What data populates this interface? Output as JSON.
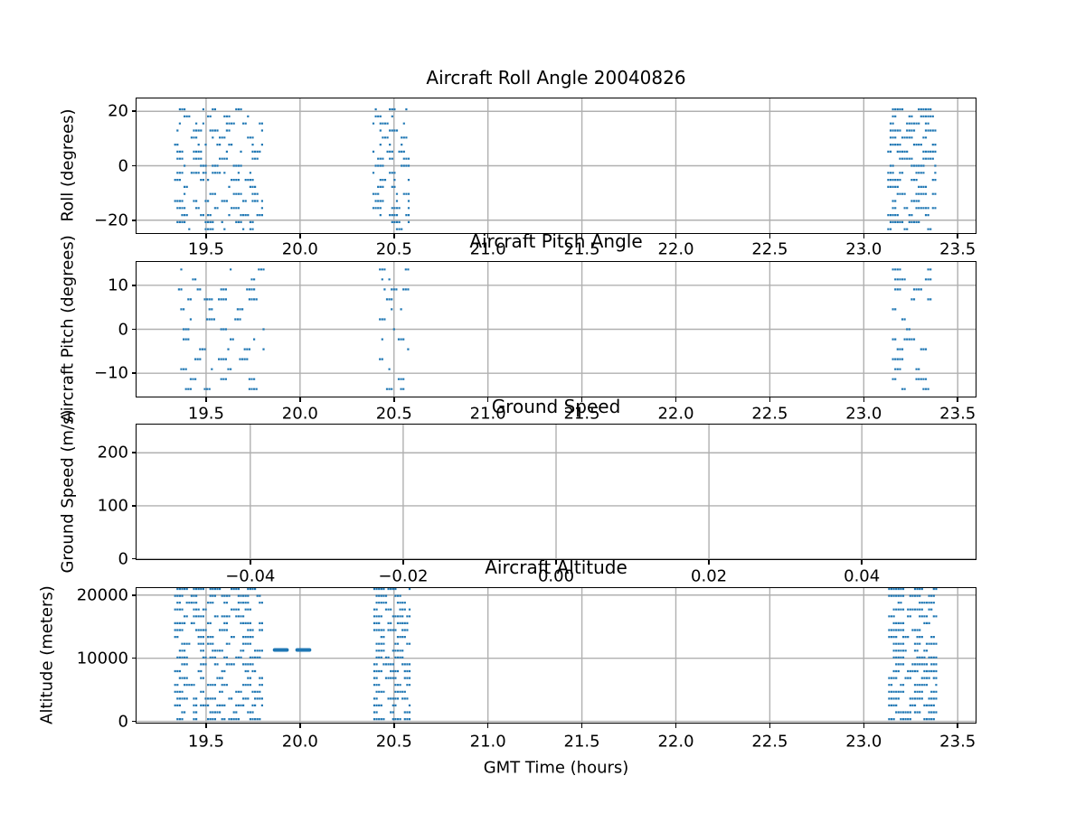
{
  "figure_title": "Aircraft Roll Angle 20040826",
  "colors": {
    "marker": "#1f77b4",
    "grid": "#b0b0b0",
    "spine": "#000000",
    "text": "#000000",
    "background": "#ffffff"
  },
  "chart_data": [
    {
      "id": "roll",
      "type": "scatter",
      "title": "Aircraft Roll Angle 20040826",
      "ylabel": "Roll (degrees)",
      "xlim": [
        19.125,
        23.6
      ],
      "ylim": [
        -25.06,
        25.06
      ],
      "xticks": [
        19.5,
        20.0,
        20.5,
        21.0,
        21.5,
        22.0,
        22.5,
        23.0,
        23.5
      ],
      "xtick_labels": [
        "19.5",
        "20.0",
        "20.5",
        "21.0",
        "21.5",
        "22.0",
        "22.5",
        "23.0",
        "23.5"
      ],
      "yticks": [
        -20,
        0,
        20
      ],
      "ytick_labels": [
        "−20",
        "0",
        "20"
      ],
      "grid": true,
      "marker": "pixel-dot",
      "y_levels": {
        "from": -23.3,
        "to": 23.3,
        "step": 2.59
      },
      "clusters": [
        {
          "x_range": [
            19.33,
            19.805
          ],
          "density": 0.3,
          "run": [
            1,
            4
          ],
          "gap": [
            1,
            6
          ]
        },
        {
          "x_range": [
            20.385,
            20.575
          ],
          "density": 0.32,
          "run": [
            1,
            4
          ],
          "gap": [
            1,
            5
          ]
        },
        {
          "x_range": [
            23.125,
            23.385
          ],
          "density": 0.4,
          "run": [
            2,
            6
          ],
          "gap": [
            1,
            5
          ]
        }
      ]
    },
    {
      "id": "pitch",
      "type": "scatter",
      "title": "Aircraft Pitch Angle",
      "ylabel": "Aircraft Pitch (degrees)",
      "xlim": [
        19.125,
        23.6
      ],
      "ylim": [
        -15.5,
        15.5
      ],
      "xticks": [
        19.5,
        20.0,
        20.5,
        21.0,
        21.5,
        22.0,
        22.5,
        23.0,
        23.5
      ],
      "xtick_labels": [
        "19.5",
        "20.0",
        "20.5",
        "21.0",
        "21.5",
        "22.0",
        "22.5",
        "23.0",
        "23.5"
      ],
      "yticks": [
        -10,
        0,
        10
      ],
      "ytick_labels": [
        "−10",
        "0",
        "10"
      ],
      "grid": true,
      "marker": "pixel-dot",
      "y_levels": {
        "from": -13.6,
        "to": 13.6,
        "step": 2.266
      },
      "clusters": [
        {
          "x_range": [
            19.35,
            19.81
          ],
          "density": 0.15,
          "run": [
            1,
            4
          ],
          "gap": [
            2,
            10
          ]
        },
        {
          "x_range": [
            20.42,
            20.575
          ],
          "density": 0.18,
          "run": [
            1,
            3
          ],
          "gap": [
            2,
            8
          ]
        },
        {
          "x_range": [
            23.15,
            23.36
          ],
          "density": 0.2,
          "run": [
            2,
            5
          ],
          "gap": [
            2,
            8
          ]
        }
      ]
    },
    {
      "id": "ground-speed",
      "type": "scatter",
      "title": "Ground Speed",
      "ylabel": "Ground Speed (m/s)",
      "xlim": [
        -0.055,
        0.055
      ],
      "ylim": [
        -2.5,
        255
      ],
      "xticks": [
        -0.04,
        -0.02,
        0.0,
        0.02,
        0.04
      ],
      "xtick_labels": [
        "−0.04",
        "−0.02",
        "0.00",
        "0.02",
        "0.04"
      ],
      "yticks": [
        0,
        100,
        200
      ],
      "ytick_labels": [
        "0",
        "100",
        "200"
      ],
      "grid": true,
      "marker": "pixel-dot",
      "y_levels": null,
      "clusters": []
    },
    {
      "id": "altitude",
      "type": "scatter",
      "title": "Aircraft Altitude",
      "ylabel": "Altitude (meters)",
      "xlabel": "GMT Time (hours)",
      "xlim": [
        19.125,
        23.6
      ],
      "ylim": [
        -350,
        21250
      ],
      "xticks": [
        19.5,
        20.0,
        20.5,
        21.0,
        21.5,
        22.0,
        22.5,
        23.0,
        23.5
      ],
      "xtick_labels": [
        "19.5",
        "20.0",
        "20.5",
        "21.0",
        "21.5",
        "22.0",
        "22.5",
        "23.0",
        "23.5"
      ],
      "yticks": [
        0,
        10000,
        20000
      ],
      "ytick_labels": [
        "0",
        "10000",
        "20000"
      ],
      "grid": true,
      "marker": "pixel-dot",
      "y_levels": {
        "from": 350,
        "to": 20965,
        "step": 1085
      },
      "clusters": [
        {
          "x_range": [
            19.33,
            19.805
          ],
          "density": 0.42,
          "run": [
            2,
            5
          ],
          "gap": [
            1,
            4
          ]
        },
        {
          "x_range": [
            20.39,
            20.58
          ],
          "density": 0.45,
          "run": [
            2,
            5
          ],
          "gap": [
            1,
            4
          ]
        },
        {
          "x_range": [
            23.13,
            23.385
          ],
          "density": 0.5,
          "run": [
            2,
            7
          ],
          "gap": [
            1,
            3
          ]
        }
      ],
      "level_runs": [
        {
          "x_range": [
            19.855,
            19.94
          ],
          "y": 11300
        },
        {
          "x_range": [
            19.975,
            20.06
          ],
          "y": 11300
        }
      ]
    }
  ]
}
